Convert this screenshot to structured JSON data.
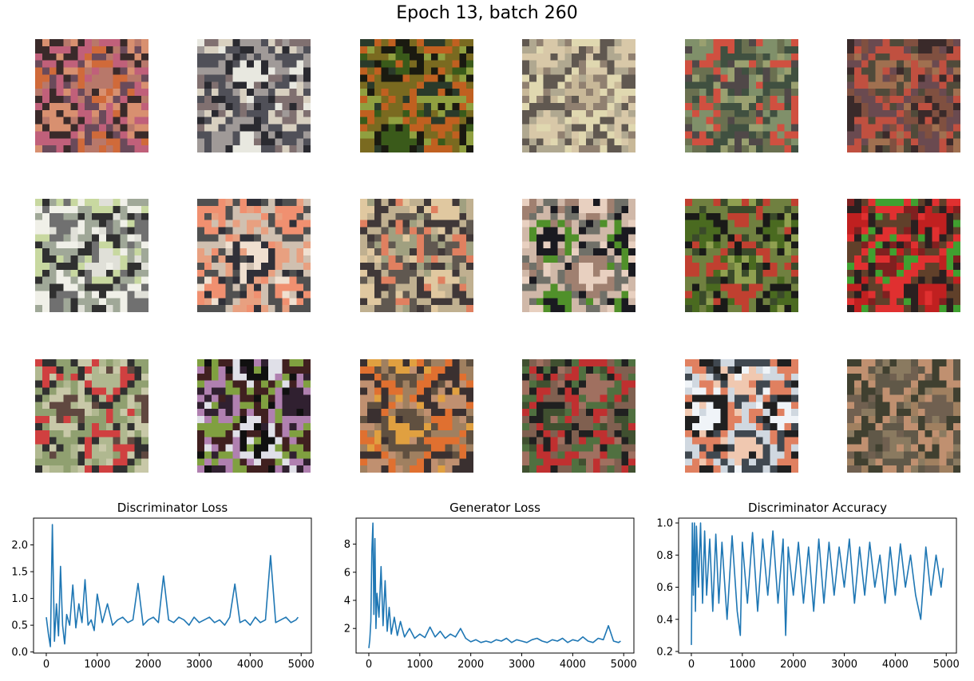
{
  "figure": {
    "title": "Epoch 13, batch 260"
  },
  "samples": [
    {
      "name": "sample-r1c1",
      "palette": [
        "#b8786a",
        "#d06a3a",
        "#6a4a5a",
        "#c0607a",
        "#3a2a2a",
        "#d89070"
      ]
    },
    {
      "name": "sample-r1c2",
      "palette": [
        "#e8e8e0",
        "#2a2a30",
        "#a09a98",
        "#505058",
        "#d8d0c0",
        "#807070"
      ]
    },
    {
      "name": "sample-r1c3",
      "palette": [
        "#3a5a1a",
        "#1a1a10",
        "#7a6a20",
        "#c06020",
        "#2a3a2a",
        "#90a040"
      ]
    },
    {
      "name": "sample-r1c4",
      "palette": [
        "#d8c8a8",
        "#b0a890",
        "#605850",
        "#e0d8b0",
        "#908070",
        "#c8b898"
      ]
    },
    {
      "name": "sample-r1c5",
      "palette": [
        "#80906a",
        "#d05040",
        "#6a7050",
        "#405040",
        "#9aa070",
        "#504848"
      ]
    },
    {
      "name": "sample-r1c6",
      "palette": [
        "#3a2a2a",
        "#805040",
        "#6a4a50",
        "#c05040",
        "#504a3a",
        "#a07050"
      ]
    },
    {
      "name": "sample-r2c1",
      "palette": [
        "#e0e0d8",
        "#c8d8a0",
        "#303030",
        "#a0a898",
        "#f0f0e8",
        "#707070"
      ]
    },
    {
      "name": "sample-r2c2",
      "palette": [
        "#f0e0d0",
        "#303038",
        "#e8a080",
        "#d0c0b0",
        "#505050",
        "#f09070"
      ]
    },
    {
      "name": "sample-r2c3",
      "palette": [
        "#a0a080",
        "#e08060",
        "#605850",
        "#c0b090",
        "#403838",
        "#e0c8a0"
      ]
    },
    {
      "name": "sample-r2c4",
      "palette": [
        "#1a1a20",
        "#50902a",
        "#d0b8a8",
        "#707068",
        "#a08070",
        "#e8d0c0"
      ]
    },
    {
      "name": "sample-r2c5",
      "palette": [
        "#4a6a20",
        "#1a1a18",
        "#708040",
        "#c04030",
        "#3a4a2a",
        "#90a050"
      ]
    },
    {
      "name": "sample-r2c6",
      "palette": [
        "#c02020",
        "#2a2020",
        "#60402a",
        "#e03030",
        "#40a030",
        "#802020"
      ]
    },
    {
      "name": "sample-r3c1",
      "palette": [
        "#b0b890",
        "#d04040",
        "#303030",
        "#90a070",
        "#c8c8a8",
        "#604840"
      ]
    },
    {
      "name": "sample-r3c2",
      "palette": [
        "#101010",
        "#e0e0e8",
        "#402020",
        "#80a040",
        "#b080b0",
        "#302030"
      ]
    },
    {
      "name": "sample-r3c3",
      "palette": [
        "#e0a040",
        "#605040",
        "#a08060",
        "#e07030",
        "#3a3030",
        "#c09070"
      ]
    },
    {
      "name": "sample-r3c4",
      "palette": [
        "#405030",
        "#202020",
        "#806050",
        "#c03030",
        "#507040",
        "#a07060"
      ]
    },
    {
      "name": "sample-r3c5",
      "palette": [
        "#f0f4f8",
        "#202020",
        "#e08060",
        "#d0d8e0",
        "#404850",
        "#f0c8b0"
      ]
    },
    {
      "name": "sample-r3c6",
      "palette": [
        "#706050",
        "#a08060",
        "#404030",
        "#c09070",
        "#605848",
        "#8a7a60"
      ]
    }
  ],
  "chart_data": [
    {
      "type": "line",
      "title": "Discriminator Loss",
      "xlabel": "",
      "ylabel": "",
      "xlim": [
        -250,
        5200
      ],
      "ylim": [
        -0.02,
        2.5
      ],
      "xticks": [
        0,
        1000,
        2000,
        3000,
        4000,
        5000
      ],
      "yticks": [
        0.0,
        0.5,
        1.0,
        1.5,
        2.0
      ],
      "ytick_labels": [
        "0.0",
        "0.5",
        "1.0",
        "1.5",
        "2.0"
      ],
      "series": [
        {
          "color": "#1f77b4",
          "x": [
            0,
            40,
            80,
            120,
            160,
            200,
            240,
            280,
            320,
            360,
            400,
            460,
            520,
            580,
            640,
            700,
            760,
            820,
            880,
            940,
            1000,
            1100,
            1200,
            1300,
            1400,
            1500,
            1600,
            1700,
            1800,
            1900,
            2000,
            2100,
            2200,
            2300,
            2400,
            2500,
            2600,
            2700,
            2800,
            2900,
            3000,
            3100,
            3200,
            3300,
            3400,
            3500,
            3600,
            3700,
            3800,
            3900,
            4000,
            4100,
            4200,
            4300,
            4400,
            4500,
            4600,
            4700,
            4800,
            4900,
            4940
          ],
          "y": [
            0.65,
            0.35,
            0.1,
            2.38,
            0.2,
            0.9,
            0.3,
            1.6,
            0.5,
            0.15,
            0.7,
            0.5,
            1.25,
            0.45,
            0.9,
            0.55,
            1.35,
            0.5,
            0.6,
            0.4,
            1.08,
            0.55,
            0.9,
            0.5,
            0.6,
            0.65,
            0.55,
            0.6,
            1.28,
            0.5,
            0.6,
            0.65,
            0.55,
            1.42,
            0.6,
            0.55,
            0.65,
            0.6,
            0.5,
            0.65,
            0.55,
            0.6,
            0.65,
            0.55,
            0.6,
            0.5,
            0.65,
            1.27,
            0.55,
            0.6,
            0.5,
            0.65,
            0.55,
            0.6,
            1.8,
            0.55,
            0.6,
            0.65,
            0.55,
            0.6,
            0.65
          ]
        }
      ]
    },
    {
      "type": "line",
      "title": "Generator Loss",
      "xlabel": "",
      "ylabel": "",
      "xlim": [
        -250,
        5200
      ],
      "ylim": [
        0.25,
        9.85
      ],
      "xticks": [
        0,
        1000,
        2000,
        3000,
        4000,
        5000
      ],
      "yticks": [
        2,
        4,
        6,
        8
      ],
      "ytick_labels": [
        "2",
        "4",
        "6",
        "8"
      ],
      "series": [
        {
          "color": "#1f77b4",
          "x": [
            0,
            20,
            40,
            60,
            80,
            100,
            120,
            140,
            160,
            200,
            240,
            280,
            320,
            360,
            400,
            440,
            500,
            560,
            620,
            700,
            800,
            900,
            1000,
            1100,
            1200,
            1300,
            1400,
            1500,
            1600,
            1700,
            1800,
            1900,
            2000,
            2100,
            2200,
            2300,
            2400,
            2500,
            2600,
            2700,
            2800,
            2900,
            3000,
            3100,
            3200,
            3300,
            3400,
            3500,
            3600,
            3700,
            3800,
            3900,
            4000,
            4100,
            4200,
            4300,
            4400,
            4500,
            4600,
            4700,
            4800,
            4900,
            4940
          ],
          "y": [
            0.6,
            1.2,
            2.5,
            7.5,
            9.5,
            3.0,
            8.4,
            2.0,
            4.5,
            2.8,
            6.4,
            2.2,
            5.4,
            1.8,
            3.5,
            1.6,
            2.8,
            1.5,
            2.5,
            1.4,
            2.0,
            1.3,
            1.6,
            1.35,
            2.1,
            1.4,
            1.8,
            1.3,
            1.6,
            1.4,
            2.0,
            1.3,
            1.05,
            1.2,
            1.0,
            1.1,
            1.0,
            1.2,
            1.1,
            1.3,
            1.0,
            1.2,
            1.1,
            1.0,
            1.2,
            1.3,
            1.1,
            1.0,
            1.2,
            1.1,
            1.3,
            1.0,
            1.2,
            1.1,
            1.4,
            1.1,
            1.0,
            1.3,
            1.2,
            2.2,
            1.1,
            1.0,
            1.1
          ]
        }
      ]
    },
    {
      "type": "line",
      "title": "Discriminator Accuracy",
      "xlabel": "",
      "ylabel": "",
      "xlim": [
        -250,
        5200
      ],
      "ylim": [
        0.19,
        1.03
      ],
      "xticks": [
        0,
        1000,
        2000,
        3000,
        4000,
        5000
      ],
      "yticks": [
        0.2,
        0.4,
        0.6,
        0.8,
        1.0
      ],
      "ytick_labels": [
        "0.2",
        "0.4",
        "0.6",
        "0.8",
        "1.0"
      ],
      "series": [
        {
          "color": "#1f77b4",
          "x": [
            0,
            20,
            40,
            60,
            80,
            100,
            140,
            180,
            220,
            260,
            300,
            360,
            420,
            480,
            540,
            600,
            700,
            800,
            900,
            960,
            1000,
            1100,
            1200,
            1300,
            1400,
            1500,
            1600,
            1700,
            1800,
            1850,
            1900,
            2000,
            2100,
            2200,
            2300,
            2400,
            2500,
            2600,
            2700,
            2800,
            2900,
            3000,
            3100,
            3200,
            3300,
            3400,
            3500,
            3600,
            3700,
            3800,
            3900,
            4000,
            4100,
            4200,
            4300,
            4400,
            4500,
            4600,
            4700,
            4800,
            4900,
            4940
          ],
          "y": [
            0.24,
            1.0,
            0.55,
            1.0,
            0.45,
            0.98,
            0.6,
            1.0,
            0.5,
            0.95,
            0.55,
            0.9,
            0.45,
            0.93,
            0.5,
            0.88,
            0.4,
            0.92,
            0.45,
            0.3,
            0.88,
            0.5,
            0.94,
            0.45,
            0.9,
            0.55,
            0.95,
            0.5,
            0.9,
            0.3,
            0.85,
            0.55,
            0.88,
            0.5,
            0.85,
            0.45,
            0.9,
            0.5,
            0.88,
            0.55,
            0.85,
            0.6,
            0.9,
            0.5,
            0.85,
            0.55,
            0.88,
            0.6,
            0.8,
            0.5,
            0.85,
            0.55,
            0.87,
            0.6,
            0.8,
            0.55,
            0.4,
            0.85,
            0.55,
            0.8,
            0.6,
            0.72
          ]
        }
      ]
    }
  ]
}
